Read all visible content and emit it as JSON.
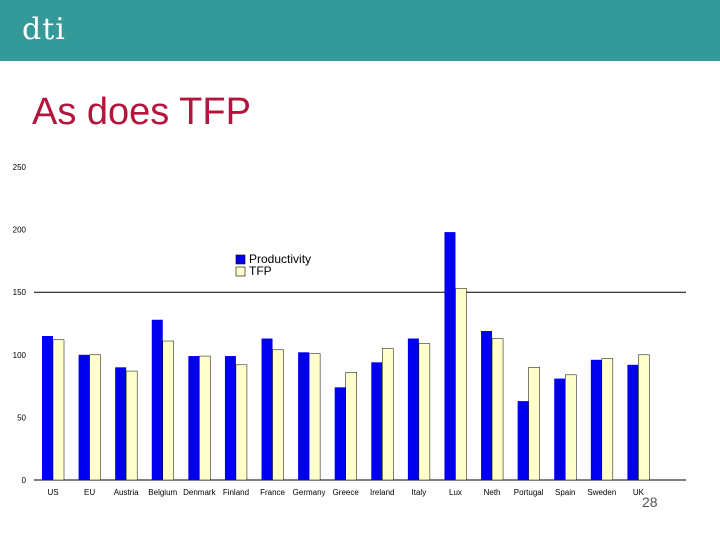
{
  "slide": {
    "logo_text": "dti",
    "title": "As does TFP",
    "page_number": "28"
  },
  "colors": {
    "header": "#339999",
    "title": "#b5143c",
    "productivity": "#0000ee",
    "tfp": "#ffffcc"
  },
  "chart_data": {
    "type": "bar",
    "title": "",
    "xlabel": "",
    "ylabel": "",
    "ylim": [
      0,
      250
    ],
    "yticks": [
      0,
      50,
      100,
      150,
      200,
      250
    ],
    "legend_position": "top-center",
    "categories": [
      "US",
      "EU",
      "Austria",
      "Belgium",
      "Denmark",
      "Finland",
      "France",
      "Germany",
      "Greece",
      "Ireland",
      "Italy",
      "Lux",
      "Neth",
      "Portugal",
      "Spain",
      "Sweden",
      "UK"
    ],
    "series": [
      {
        "name": "Productivity",
        "values": [
          115,
          100,
          90,
          128,
          99,
          99,
          113,
          102,
          74,
          94,
          113,
          198,
          119,
          63,
          81,
          96,
          92
        ]
      },
      {
        "name": "TFP",
        "values": [
          112,
          100,
          87,
          111,
          99,
          92,
          104,
          101,
          86,
          105,
          109,
          153,
          113,
          90,
          84,
          97,
          100
        ]
      }
    ],
    "reference_line": 150
  }
}
